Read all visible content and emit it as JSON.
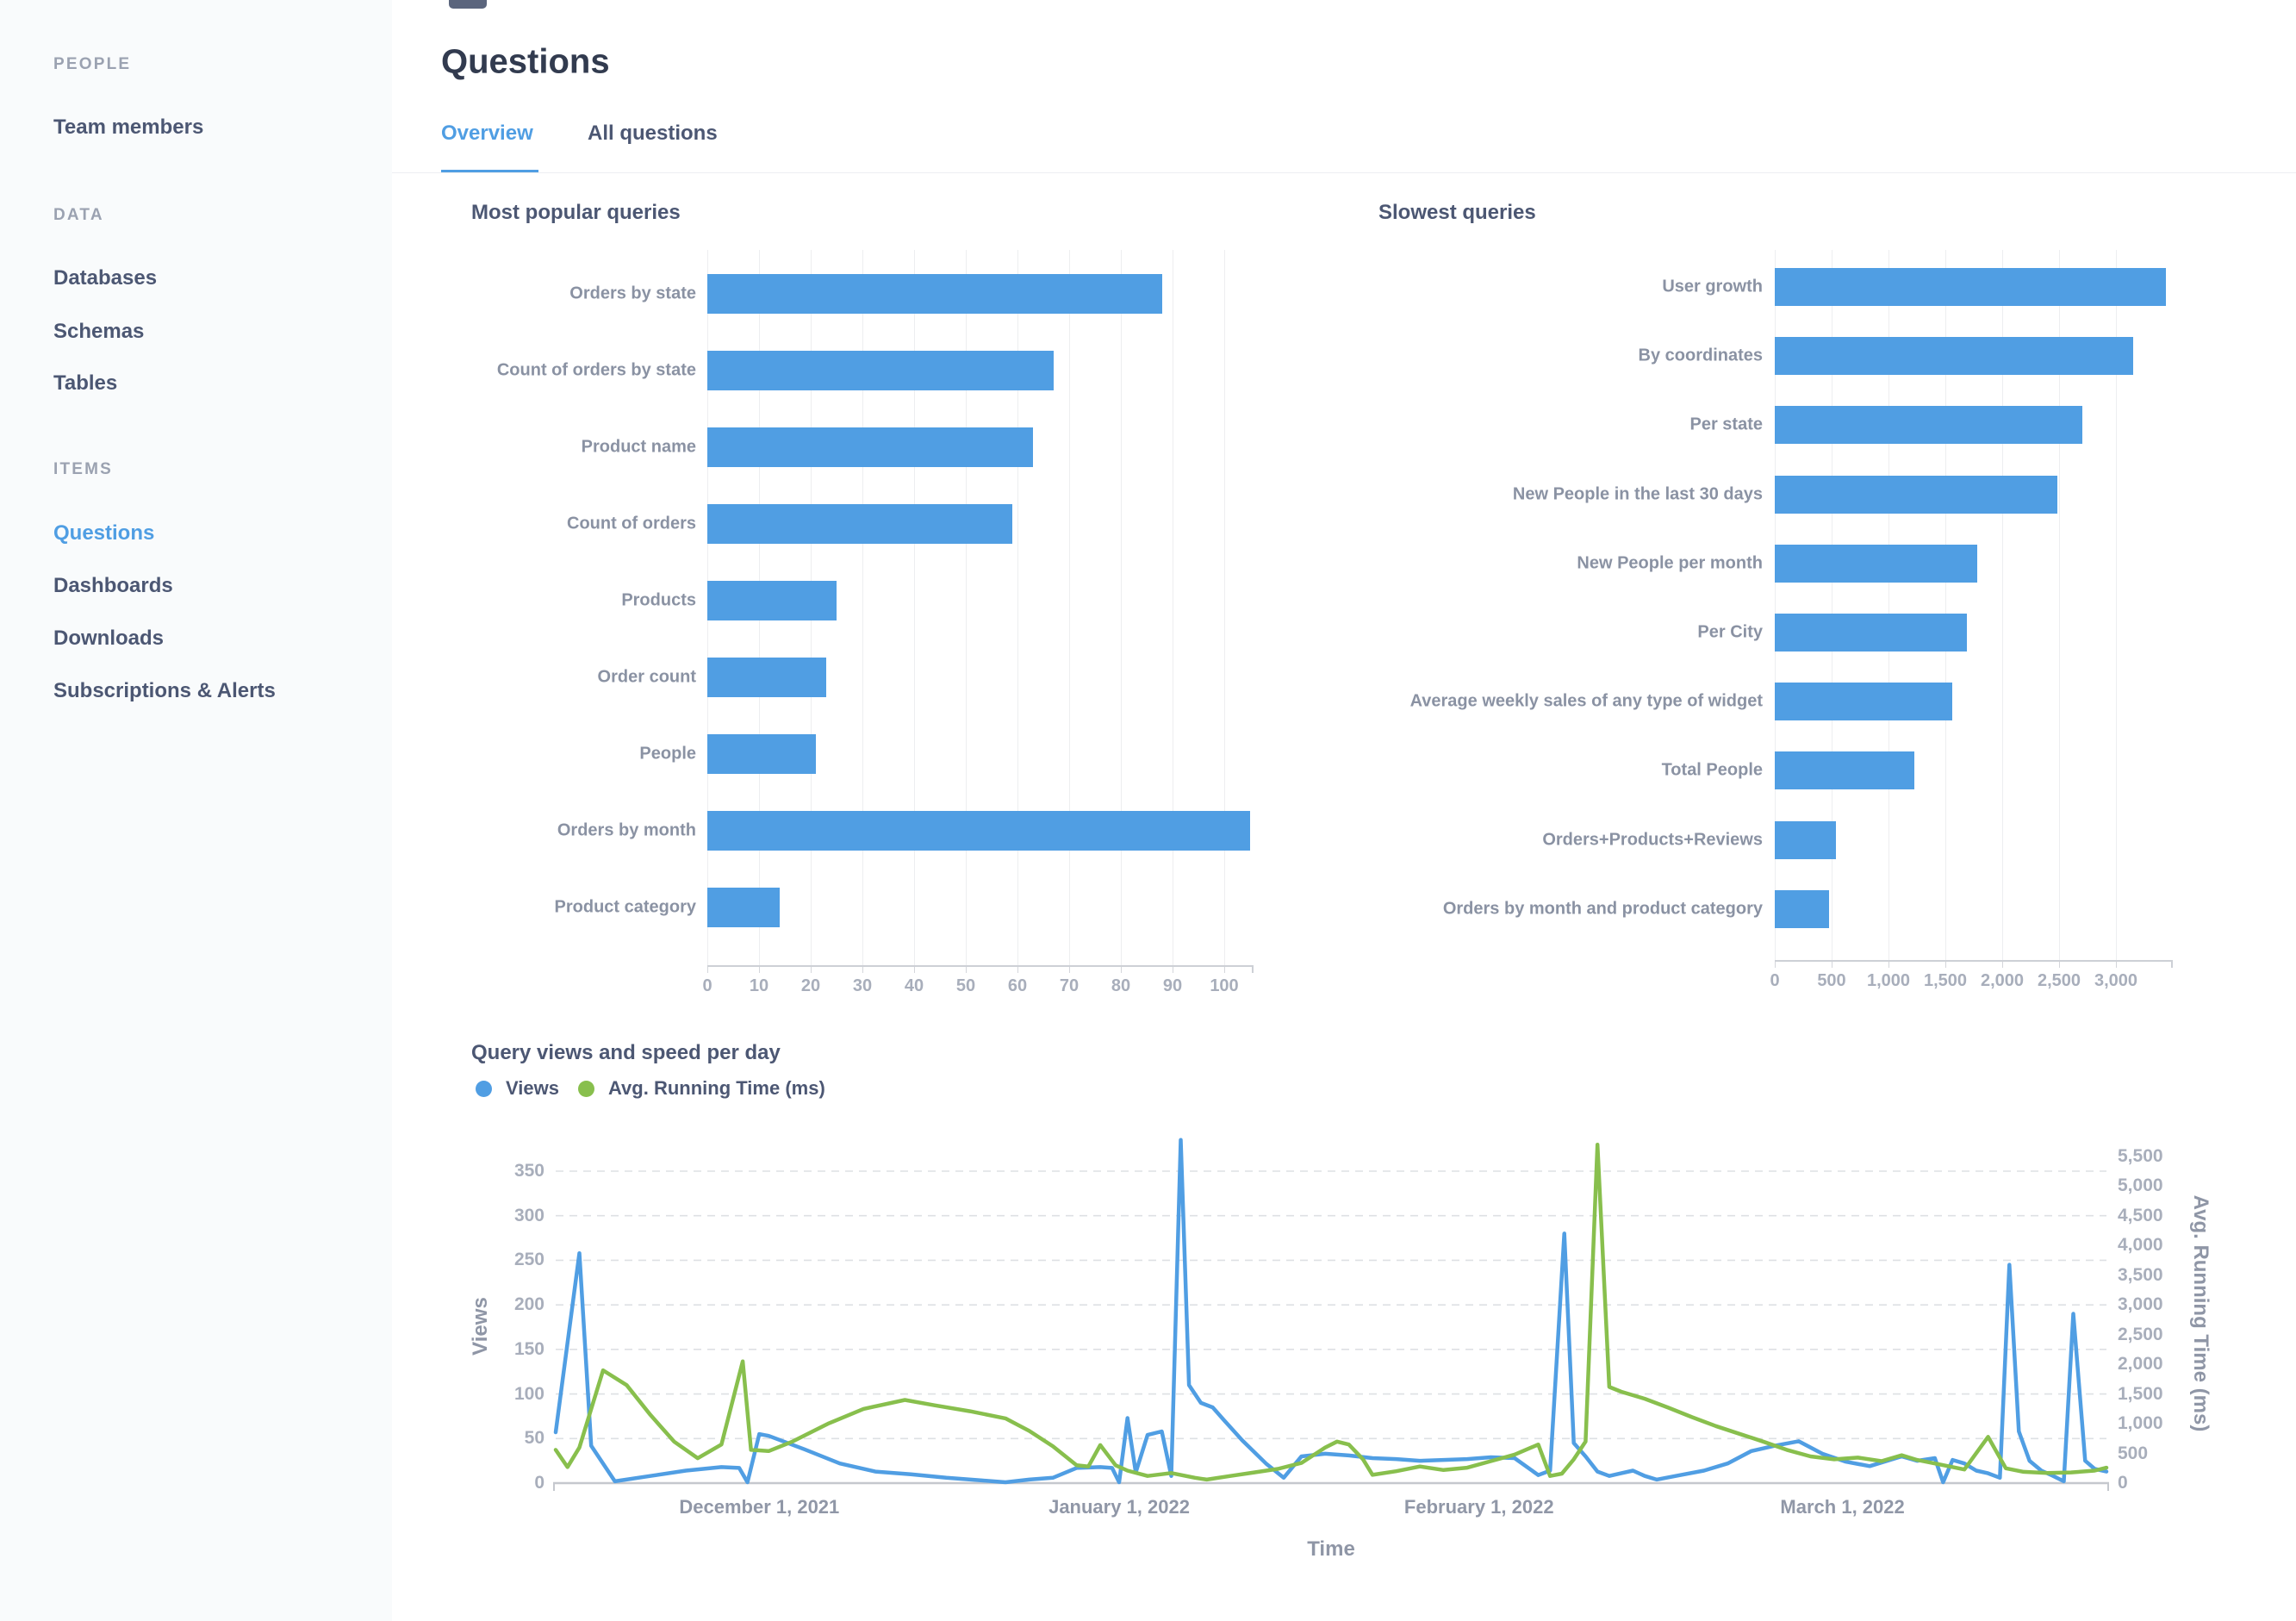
{
  "sidebar": {
    "sections": [
      {
        "label": "PEOPLE",
        "y": 75,
        "items": [
          {
            "label": "Team members",
            "y": 148,
            "active": false
          }
        ]
      },
      {
        "label": "DATA",
        "y": 250,
        "items": [
          {
            "label": "Databases",
            "y": 323,
            "active": false
          },
          {
            "label": "Schemas",
            "y": 385,
            "active": false
          },
          {
            "label": "Tables",
            "y": 445,
            "active": false
          }
        ]
      },
      {
        "label": "ITEMS",
        "y": 545,
        "items": [
          {
            "label": "Questions",
            "y": 619,
            "active": true
          },
          {
            "label": "Dashboards",
            "y": 680,
            "active": false
          },
          {
            "label": "Downloads",
            "y": 741,
            "active": false
          },
          {
            "label": "Subscriptions & Alerts",
            "y": 802,
            "active": false
          }
        ]
      }
    ]
  },
  "header": {
    "title": "Questions",
    "tabs": [
      {
        "label": "Overview",
        "active": true,
        "x": 512
      },
      {
        "label": "All questions",
        "active": false,
        "x": 682
      }
    ]
  },
  "colors": {
    "accent": "#509EE3",
    "green": "#88BF4D",
    "text_dark": "#4C5773",
    "label_gray": "#8A92A3",
    "tick_gray": "#A8AEBB"
  },
  "chart_data": [
    {
      "type": "bar",
      "orientation": "horizontal",
      "title": "Most popular queries",
      "categories": [
        "Orders by state",
        "Count of orders by state",
        "Product name",
        "Count of orders",
        "Products",
        "Order count",
        "People",
        "Orders by month",
        "Product category"
      ],
      "values": [
        88,
        67,
        63,
        59,
        25,
        23,
        21,
        105,
        14
      ],
      "xlabel": "",
      "ylabel": "",
      "xlim": [
        0,
        105
      ],
      "xticks": [
        0,
        10,
        20,
        30,
        40,
        50,
        60,
        70,
        80,
        90,
        100
      ],
      "xtick_labels": [
        "0",
        "10",
        "20",
        "30",
        "40",
        "50",
        "60",
        "70",
        "80",
        "90",
        "100"
      ],
      "grid": true,
      "legend": false,
      "bar_color": "#509EE3"
    },
    {
      "type": "bar",
      "orientation": "horizontal",
      "title": "Slowest queries",
      "categories": [
        "User growth",
        "By coordinates",
        "Per state",
        "New People in the last 30 days",
        "New People per month",
        "Per City",
        "Average weekly sales of any type of widget",
        "Total People",
        "Orders+Products+Reviews",
        "Orders by month and product category"
      ],
      "values": [
        3440,
        3155,
        2705,
        2485,
        1780,
        1690,
        1560,
        1230,
        540,
        480
      ],
      "xlabel": "",
      "ylabel": "",
      "xlim": [
        0,
        3500
      ],
      "xticks": [
        0,
        500,
        1000,
        1500,
        2000,
        2500,
        3000
      ],
      "xtick_labels": [
        "0",
        "500",
        "1,000",
        "1,500",
        "2,000",
        "2,500",
        "3,000"
      ],
      "grid": true,
      "legend": false,
      "bar_color": "#509EE3"
    },
    {
      "type": "line",
      "title": "Query views and speed per day",
      "xlabel": "Time",
      "ylabel_left": "Views",
      "ylabel_right": "Avg. Running Time (ms)",
      "ylim_left": [
        0,
        350
      ],
      "ylim_right": [
        0,
        5500
      ],
      "ytick_labels_left": [
        "0",
        "50",
        "100",
        "150",
        "200",
        "250",
        "300",
        "350"
      ],
      "ytick_labels_right": [
        "0",
        "500",
        "1,000",
        "1,500",
        "2,000",
        "2,500",
        "3,000",
        "3,500",
        "4,000",
        "4,500",
        "5,000",
        "5,500"
      ],
      "x_domain_days": [
        0,
        131
      ],
      "xtick_labels": [
        {
          "label": "December 1, 2021",
          "day": 17.2
        },
        {
          "label": "January 1, 2022",
          "day": 47.6
        },
        {
          "label": "February 1, 2022",
          "day": 78.0
        },
        {
          "label": "March 1, 2022",
          "day": 108.7
        }
      ],
      "grid": "horizontal-dashed",
      "legend_position": "top-left",
      "series": [
        {
          "name": "Views",
          "color": "#509EE3",
          "axis": "left",
          "points": [
            [
              0,
              57
            ],
            [
              2,
              258
            ],
            [
              3,
              42
            ],
            [
              5,
              2
            ],
            [
              8,
              8
            ],
            [
              11,
              14
            ],
            [
              14,
              18
            ],
            [
              15.5,
              17
            ],
            [
              16.2,
              1
            ],
            [
              17.2,
              55
            ],
            [
              18,
              53
            ],
            [
              21,
              38
            ],
            [
              24,
              22
            ],
            [
              27,
              13
            ],
            [
              30,
              10
            ],
            [
              33,
              6
            ],
            [
              36,
              3
            ],
            [
              38,
              1
            ],
            [
              40,
              4
            ],
            [
              42,
              6
            ],
            [
              44,
              17
            ],
            [
              46,
              18
            ],
            [
              47,
              17
            ],
            [
              47.6,
              1
            ],
            [
              48.3,
              73
            ],
            [
              49,
              12
            ],
            [
              50,
              54
            ],
            [
              51.2,
              58
            ],
            [
              52,
              8
            ],
            [
              52.8,
              385
            ],
            [
              53.5,
              110
            ],
            [
              54.5,
              90
            ],
            [
              55.5,
              85
            ],
            [
              56.5,
              70
            ],
            [
              58,
              48
            ],
            [
              60,
              22
            ],
            [
              61.5,
              6
            ],
            [
              63,
              30
            ],
            [
              65,
              33
            ],
            [
              67,
              31
            ],
            [
              69,
              28
            ],
            [
              71,
              27
            ],
            [
              73,
              25
            ],
            [
              75,
              26
            ],
            [
              77,
              27
            ],
            [
              79,
              29
            ],
            [
              81,
              28
            ],
            [
              83,
              9
            ],
            [
              84,
              14
            ],
            [
              85.2,
              280
            ],
            [
              86,
              45
            ],
            [
              87,
              30
            ],
            [
              88,
              13
            ],
            [
              89,
              8
            ],
            [
              90,
              11
            ],
            [
              91,
              14
            ],
            [
              92,
              8
            ],
            [
              93,
              4
            ],
            [
              95,
              9
            ],
            [
              97,
              14
            ],
            [
              99,
              22
            ],
            [
              101,
              36
            ],
            [
              103,
              42
            ],
            [
              105,
              47
            ],
            [
              107,
              33
            ],
            [
              109,
              24
            ],
            [
              111,
              19
            ],
            [
              113.7,
              30
            ],
            [
              115,
              25
            ],
            [
              116.5,
              28
            ],
            [
              117.2,
              1
            ],
            [
              118,
              26
            ],
            [
              119,
              22
            ],
            [
              120,
              14
            ],
            [
              121,
              11
            ],
            [
              122,
              6
            ],
            [
              122.8,
              245
            ],
            [
              123.6,
              58
            ],
            [
              124.5,
              25
            ],
            [
              125.5,
              14
            ],
            [
              126.5,
              8
            ],
            [
              127.4,
              2
            ],
            [
              128.2,
              190
            ],
            [
              129.2,
              25
            ],
            [
              130,
              16
            ],
            [
              131,
              13
            ]
          ]
        },
        {
          "name": "Avg. Running Time (ms)",
          "color": "#88BF4D",
          "axis": "right",
          "points": [
            [
              0,
              560
            ],
            [
              1,
              270
            ],
            [
              2,
              600
            ],
            [
              4,
              1900
            ],
            [
              6,
              1650
            ],
            [
              8,
              1150
            ],
            [
              10,
              700
            ],
            [
              12,
              420
            ],
            [
              14,
              650
            ],
            [
              15.8,
              2050
            ],
            [
              16.5,
              560
            ],
            [
              18,
              540
            ],
            [
              20,
              700
            ],
            [
              23,
              1000
            ],
            [
              26,
              1250
            ],
            [
              29.5,
              1400
            ],
            [
              32,
              1310
            ],
            [
              35,
              1210
            ],
            [
              38,
              1090
            ],
            [
              40,
              880
            ],
            [
              42,
              620
            ],
            [
              44,
              300
            ],
            [
              45,
              280
            ],
            [
              46,
              640
            ],
            [
              47.3,
              300
            ],
            [
              48.3,
              210
            ],
            [
              50,
              120
            ],
            [
              52,
              170
            ],
            [
              54,
              90
            ],
            [
              55,
              60
            ],
            [
              57,
              120
            ],
            [
              59,
              180
            ],
            [
              61,
              240
            ],
            [
              63,
              340
            ],
            [
              65,
              600
            ],
            [
              66,
              700
            ],
            [
              67,
              650
            ],
            [
              68.2,
              400
            ],
            [
              69,
              140
            ],
            [
              71,
              200
            ],
            [
              73,
              280
            ],
            [
              75,
              220
            ],
            [
              77,
              260
            ],
            [
              79,
              370
            ],
            [
              81,
              480
            ],
            [
              83,
              650
            ],
            [
              84,
              120
            ],
            [
              85,
              160
            ],
            [
              86,
              400
            ],
            [
              87,
              700
            ],
            [
              88,
              5700
            ],
            [
              89,
              1620
            ],
            [
              90,
              1540
            ],
            [
              92,
              1420
            ],
            [
              94,
              1270
            ],
            [
              96,
              1110
            ],
            [
              98,
              960
            ],
            [
              100,
              830
            ],
            [
              102,
              700
            ],
            [
              104,
              560
            ],
            [
              106,
              450
            ],
            [
              108,
              400
            ],
            [
              110,
              430
            ],
            [
              112,
              370
            ],
            [
              113.7,
              470
            ],
            [
              115,
              390
            ],
            [
              117,
              310
            ],
            [
              119,
              230
            ],
            [
              121,
              780
            ],
            [
              122.5,
              250
            ],
            [
              124,
              190
            ],
            [
              126,
              170
            ],
            [
              128,
              180
            ],
            [
              130,
              210
            ],
            [
              131,
              260
            ]
          ]
        }
      ]
    }
  ]
}
